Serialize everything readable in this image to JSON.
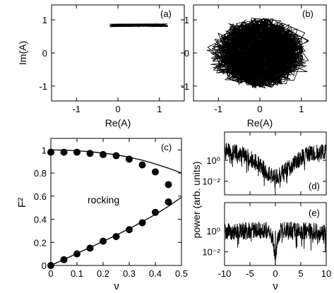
{
  "chart_data": [
    {
      "id": "a",
      "type": "line",
      "panel_label": "(a)",
      "xlabel": "Re(A)",
      "ylabel": "Im(A)",
      "xlim": [
        -1.6,
        1.6
      ],
      "ylim": [
        -1.45,
        1.45
      ],
      "xticks": [
        -1,
        0,
        1
      ],
      "yticks": [
        -1,
        0,
        1
      ],
      "xtick_labels": [
        "-1",
        "0",
        "1"
      ],
      "ytick_labels": [
        "-1",
        "0",
        "1"
      ],
      "series": [
        {
          "x": [
            -0.2,
            0.05,
            0.3,
            0.55,
            0.8,
            1.05,
            1.2,
            0.9,
            0.6,
            0.3,
            0.0,
            -0.2
          ],
          "y": [
            0.83,
            0.86,
            0.84,
            0.87,
            0.85,
            0.84,
            0.83,
            0.82,
            0.83,
            0.81,
            0.82,
            0.83
          ]
        }
      ]
    },
    {
      "id": "b",
      "type": "line",
      "panel_label": "(b)",
      "xlabel": "Re(A)",
      "xlim": [
        -1.6,
        1.6
      ],
      "ylim": [
        -1.45,
        1.45
      ],
      "xticks": [
        -1,
        0,
        1
      ],
      "yticks": [
        -1,
        0,
        1
      ],
      "xtick_labels": [
        "-1",
        "0",
        "1"
      ],
      "ytick_labels": [
        "-1",
        "0",
        "1"
      ],
      "ring_inner_radius": [
        0.55,
        0.63
      ],
      "ring_outer_radius": [
        1.0,
        1.0
      ],
      "ring_outer_radius_x_max": 1.35
    },
    {
      "id": "c",
      "type": "scatter",
      "panel_label": "(c)",
      "annotation": "rocking",
      "xlabel": "ν",
      "ylabel": "F²",
      "xlim": [
        0,
        0.5
      ],
      "ylim": [
        0,
        1.1
      ],
      "xticks": [
        0,
        0.1,
        0.2,
        0.3,
        0.4,
        0.5
      ],
      "yticks": [
        0,
        0.2,
        0.4,
        0.6,
        0.8,
        1
      ],
      "xtick_labels": [
        "0",
        "0.1",
        "0.2",
        "0.3",
        "0.4",
        "0.5"
      ],
      "ytick_labels": [
        "0",
        "0.2",
        "0.4",
        "0.6",
        "0.8",
        "1"
      ],
      "points": {
        "x": [
          0,
          0.05,
          0.1,
          0.15,
          0.2,
          0.25,
          0.3,
          0.35,
          0.4,
          0.45,
          0,
          0.05,
          0.1,
          0.15,
          0.2,
          0.25,
          0.3,
          0.35,
          0.4,
          0.45
        ],
        "y": [
          0.98,
          0.98,
          0.98,
          0.97,
          0.96,
          0.95,
          0.92,
          0.87,
          0.81,
          0.7,
          0.0,
          0.05,
          0.1,
          0.15,
          0.21,
          0.25,
          0.31,
          0.37,
          0.46,
          0.55
        ]
      },
      "curves": [
        {
          "x": [
            0,
            0.05,
            0.1,
            0.15,
            0.2,
            0.25,
            0.3,
            0.35,
            0.4,
            0.45,
            0.5
          ],
          "y": [
            1.0,
            0.998,
            0.993,
            0.985,
            0.973,
            0.958,
            0.937,
            0.911,
            0.879,
            0.842,
            0.8
          ]
        },
        {
          "x": [
            0,
            0.05,
            0.1,
            0.15,
            0.2,
            0.25,
            0.3,
            0.35,
            0.4,
            0.45,
            0.5
          ],
          "y": [
            0.0,
            0.052,
            0.104,
            0.156,
            0.208,
            0.262,
            0.318,
            0.378,
            0.442,
            0.512,
            0.59
          ]
        }
      ]
    },
    {
      "id": "d",
      "type": "line",
      "panel_label": "(d)",
      "yscale": "log",
      "xlim": [
        -10,
        10
      ],
      "ylim": [
        0.0005,
        500
      ],
      "xticks": [
        -10,
        -5,
        0,
        5,
        10
      ],
      "yticks": [
        1,
        0.01
      ],
      "ytick_labels": [
        "10⁰",
        "10⁻²"
      ],
      "envelope": {
        "x": [
          -10,
          -8,
          -6,
          -4,
          -2,
          -1,
          0,
          1,
          2,
          4,
          6,
          8,
          10
        ],
        "y": [
          8,
          6,
          3,
          0.8,
          0.1,
          0.04,
          0.02,
          0.04,
          0.1,
          0.8,
          3,
          6,
          8
        ]
      }
    },
    {
      "id": "e",
      "type": "line",
      "panel_label": "(e)",
      "yscale": "log",
      "xlabel": "ν",
      "ylabel": "power (arb. units)",
      "xlim": [
        -10,
        10
      ],
      "ylim": [
        0.0005,
        500
      ],
      "xticks": [
        -10,
        -5,
        0,
        5,
        10
      ],
      "xtick_labels": [
        "-10",
        "-5",
        "0",
        "5",
        "10"
      ],
      "yticks": [
        1,
        0.01
      ],
      "ytick_labels": [
        "10⁰",
        "10⁻²"
      ],
      "envelope": {
        "x": [
          -10,
          -8,
          -6,
          -4,
          -2,
          -1,
          -0.5,
          0,
          0.5,
          1,
          2,
          4,
          6,
          8,
          10
        ],
        "y": [
          0.8,
          0.9,
          1.0,
          1.1,
          1.2,
          0.9,
          0.15,
          0.005,
          0.15,
          0.9,
          1.2,
          1.1,
          1.0,
          0.9,
          0.8
        ]
      }
    }
  ]
}
